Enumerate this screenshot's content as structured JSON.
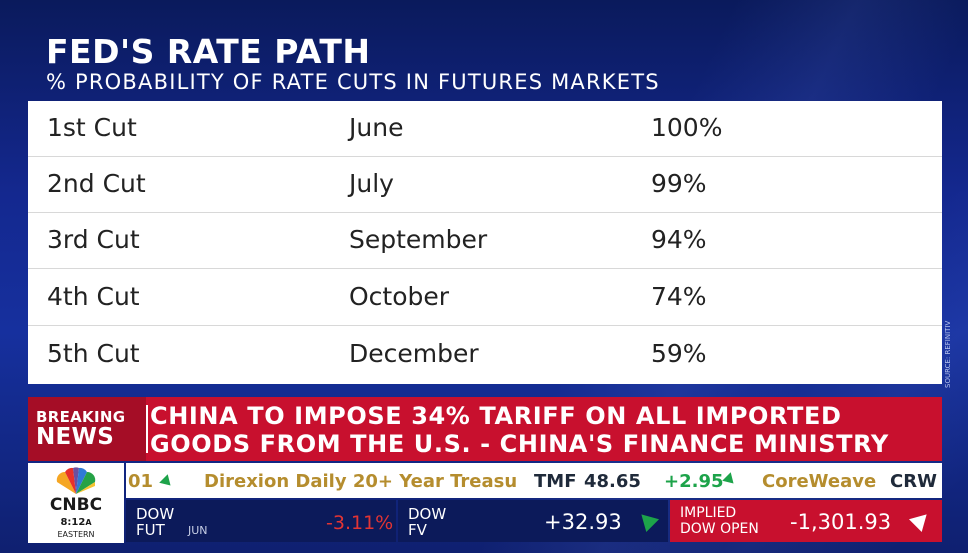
{
  "graphic": {
    "title": "FED'S RATE PATH",
    "subtitle": "% PROBABILITY OF RATE CUTS IN FUTURES MARKETS",
    "source": "SOURCE: REFINITIV",
    "rows": [
      {
        "cut": "1st Cut",
        "month": "June",
        "prob": "100%"
      },
      {
        "cut": "2nd Cut",
        "month": "July",
        "prob": "99%"
      },
      {
        "cut": "3rd Cut",
        "month": "September",
        "prob": "94%"
      },
      {
        "cut": "4th Cut",
        "month": "October",
        "prob": "74%"
      },
      {
        "cut": "5th Cut",
        "month": "December",
        "prob": "59%"
      }
    ]
  },
  "breaking": {
    "label_top": "BREAKING",
    "label_bottom": "NEWS",
    "headline_line1": "CHINA TO IMPOSE 34% TARIFF ON ALL IMPORTED",
    "headline_line2": "GOODS FROM THE U.S. - CHINA'S FINANCE MINISTRY"
  },
  "logo": {
    "wordmark": "CNBC",
    "time": "8:12",
    "ampm": "A",
    "zone": "EASTERN"
  },
  "ticker": {
    "item0_tail": "01",
    "item1_name": "Direxion Daily 20+ Year Treasu",
    "item1_symbol": "TMF",
    "item1_price": "48.65",
    "item1_change": "+2.95",
    "item2_name": "CoreWeave",
    "item2_symbol": "CRW"
  },
  "markets": [
    {
      "line1": "DOW",
      "line2": "FUT",
      "sub": "JUN",
      "value": "-3.11%"
    },
    {
      "line1": "DOW",
      "line2": "FV",
      "sub": "",
      "value": "+32.93"
    },
    {
      "line1": "IMPLIED",
      "line2": "DOW OPEN",
      "sub": "",
      "value": "-1,301.93"
    }
  ],
  "colors": {
    "background": "#14288f",
    "breaking_red": "#c8102e",
    "up_green": "#1da34a",
    "down_red": "#e23434",
    "ticker_gold": "#b58d2e"
  }
}
